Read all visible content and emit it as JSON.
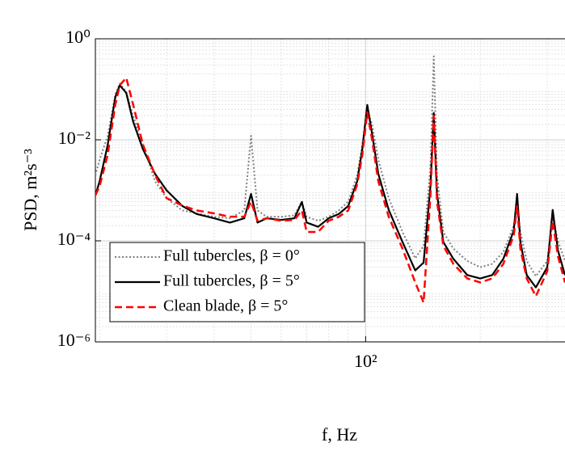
{
  "chart_data": {
    "type": "line",
    "xlabel": "f, Hz",
    "ylabel": "PSD, m²s⁻³",
    "x": [
      19.5,
      20,
      21,
      22,
      22.6,
      23.5,
      24.5,
      26,
      28,
      30,
      33,
      36,
      40,
      44,
      48,
      50,
      52,
      55,
      60,
      65,
      68,
      70,
      75,
      80,
      85,
      90,
      95,
      98,
      101,
      104,
      108,
      115,
      125,
      135,
      142,
      148,
      151,
      154,
      160,
      170,
      185,
      200,
      215,
      230,
      245,
      250,
      255,
      265,
      280,
      300,
      310,
      320,
      334
    ],
    "series": [
      {
        "name": "Full tubercles, β = 0°",
        "color": "#808080",
        "linestyle": "dotted",
        "values": [
          0.002,
          0.004,
          0.012,
          0.08,
          0.13,
          0.09,
          0.03,
          0.008,
          0.0015,
          0.0007,
          0.0004,
          0.00035,
          0.0003,
          0.00028,
          0.0004,
          0.012,
          0.0004,
          0.0003,
          0.0003,
          0.00032,
          0.0006,
          0.0003,
          0.00025,
          0.0003,
          0.0004,
          0.0006,
          0.002,
          0.008,
          0.04,
          0.02,
          0.004,
          0.0007,
          0.00015,
          4.5e-05,
          8e-05,
          0.003,
          0.45,
          0.002,
          0.00015,
          7e-05,
          4e-05,
          3e-05,
          3.5e-05,
          6e-05,
          0.0002,
          0.0005,
          0.00015,
          4e-05,
          2e-05,
          4e-05,
          0.0003,
          0.0001,
          4e-05
        ]
      },
      {
        "name": "Full tubercles, β = 5°",
        "color": "#000000",
        "linestyle": "solid",
        "values": [
          0.00079,
          0.0015,
          0.0078,
          0.07,
          0.12,
          0.085,
          0.023,
          0.0065,
          0.0021,
          0.001,
          0.00049,
          0.00034,
          0.00028,
          0.00023,
          0.00028,
          0.00085,
          0.00023,
          0.00028,
          0.00026,
          0.00028,
          0.00059,
          0.00023,
          0.00019,
          0.00028,
          0.00034,
          0.00049,
          0.0015,
          0.0065,
          0.049,
          0.013,
          0.0021,
          0.00041,
          9.5e-05,
          2.6e-05,
          3.7e-05,
          0.0012,
          0.034,
          0.00085,
          9.5e-05,
          4.4e-05,
          2.1e-05,
          1.8e-05,
          2.1e-05,
          4.4e-05,
          0.00016,
          0.00085,
          9.5e-05,
          2.1e-05,
          1.2e-05,
          3e-05,
          0.00041,
          6.5e-05,
          2.1e-05
        ]
      },
      {
        "name": "Clean blade, β = 5°",
        "color": "#ff0000",
        "linestyle": "dashed",
        "values": [
          0.0008,
          0.0012,
          0.005,
          0.05,
          0.12,
          0.17,
          0.05,
          0.008,
          0.002,
          0.0007,
          0.0005,
          0.0004,
          0.00035,
          0.0003,
          0.0003,
          0.0006,
          0.00025,
          0.00028,
          0.00025,
          0.00026,
          0.0004,
          0.00015,
          0.00015,
          0.00025,
          0.0003,
          0.0004,
          0.0013,
          0.005,
          0.035,
          0.01,
          0.0015,
          0.0003,
          7e-05,
          1.5e-05,
          6e-06,
          0.0008,
          0.03,
          0.0006,
          8e-05,
          3.5e-05,
          1.8e-05,
          1.5e-05,
          1.8e-05,
          3.5e-05,
          0.00013,
          0.0005,
          7e-05,
          1.8e-05,
          8e-06,
          2.5e-05,
          0.00025,
          5e-05,
          1.5e-05
        ]
      }
    ],
    "xlim": [
      19.5,
      334
    ],
    "ylim": [
      1e-06,
      1
    ],
    "xscale": "log",
    "yscale": "log",
    "xticks": [
      {
        "value": 100,
        "label": "10²"
      }
    ],
    "yticks": [
      {
        "value": 1e-06,
        "label": "10⁻⁶"
      },
      {
        "value": 0.0001,
        "label": "10⁻⁴"
      },
      {
        "value": 0.01,
        "label": "10⁻²"
      },
      {
        "value": 1,
        "label": "10⁰"
      }
    ],
    "grid": true,
    "minor_grid": true,
    "legend": "lower left"
  }
}
